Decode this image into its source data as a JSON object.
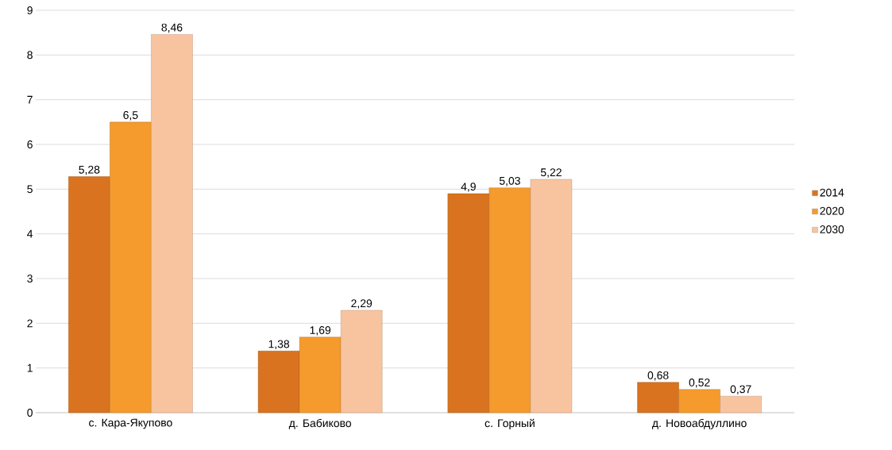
{
  "chart_data": {
    "type": "bar",
    "categories": [
      "с. Кара-Якупово",
      "д. Бабиково",
      "с. Горный",
      "д. Новоабдуллино"
    ],
    "series": [
      {
        "name": "2014",
        "color": "#d9731f",
        "values": [
          5.28,
          1.38,
          4.9,
          0.68
        ],
        "value_labels": [
          "5,28",
          "1,38",
          "4,9",
          "0,68"
        ]
      },
      {
        "name": "2020",
        "color": "#f59a2c",
        "values": [
          6.5,
          1.69,
          5.03,
          0.52
        ],
        "value_labels": [
          "6,5",
          "1,69",
          "5,03",
          "0,52"
        ]
      },
      {
        "name": "2030",
        "color": "#f8c4a0",
        "values": [
          8.46,
          2.29,
          5.22,
          0.37
        ],
        "value_labels": [
          "8,46",
          "2,29",
          "5,22",
          "0,37"
        ]
      }
    ],
    "ylim": [
      0,
      9
    ],
    "yticks": [
      0,
      1,
      2,
      3,
      4,
      5,
      6,
      7,
      8,
      9
    ],
    "grid": "y",
    "legend": "right"
  }
}
